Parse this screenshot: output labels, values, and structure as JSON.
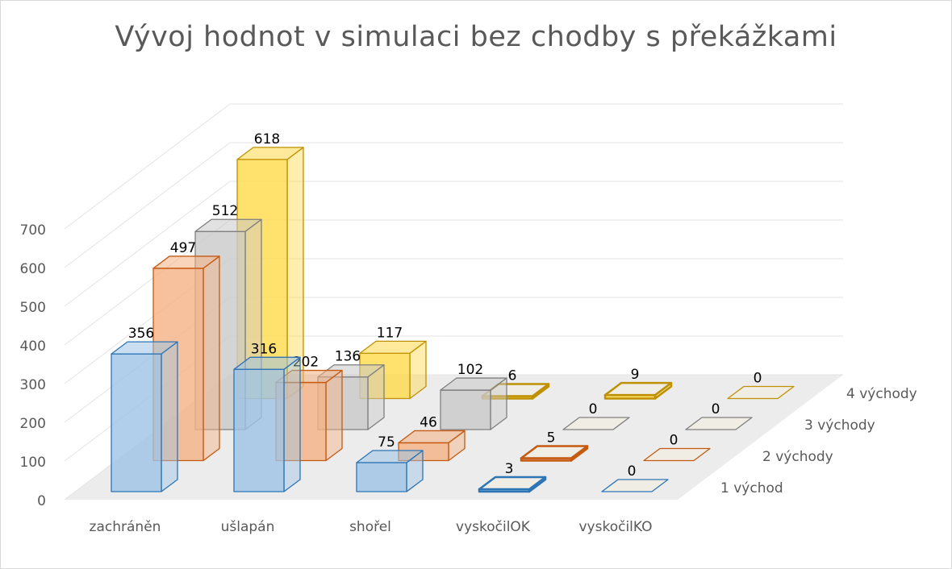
{
  "chart_data": {
    "type": "bar",
    "subtype": "3d-column",
    "title": "Vývoj hodnot v simulaci bez chodby s překážkami",
    "categories": [
      "zachráněn",
      "ušlapán",
      "shořel",
      "vyskočilOK",
      "vyskočilKO"
    ],
    "series": [
      {
        "name": "1 východ",
        "values": [
          356,
          316,
          75,
          3,
          0
        ],
        "color": "#9dc3e6",
        "stroke": "#2e75b6"
      },
      {
        "name": "2 východy",
        "values": [
          497,
          202,
          46,
          5,
          0
        ],
        "color": "#f4b183",
        "stroke": "#c55a11"
      },
      {
        "name": "3 východy",
        "values": [
          512,
          136,
          102,
          0,
          0
        ],
        "color": "#c9c9c9",
        "stroke": "#7f7f7f"
      },
      {
        "name": "4 východy",
        "values": [
          618,
          117,
          6,
          9,
          0
        ],
        "color": "#ffd94a",
        "stroke": "#bf9000"
      }
    ],
    "yticks": [
      "0",
      "100",
      "200",
      "300",
      "400",
      "500",
      "600",
      "700"
    ],
    "ylim": [
      0,
      700
    ],
    "grid": true,
    "data_labels": true,
    "legend": "depth-axis labels (right)"
  }
}
